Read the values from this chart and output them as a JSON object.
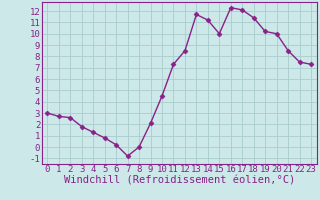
{
  "x": [
    0,
    1,
    2,
    3,
    4,
    5,
    6,
    7,
    8,
    9,
    10,
    11,
    12,
    13,
    14,
    15,
    16,
    17,
    18,
    19,
    20,
    21,
    22,
    23
  ],
  "y": [
    3.0,
    2.7,
    2.6,
    1.8,
    1.3,
    0.8,
    0.2,
    -0.8,
    0.0,
    2.1,
    4.5,
    7.3,
    8.5,
    11.7,
    11.2,
    10.0,
    12.3,
    12.1,
    11.4,
    10.2,
    10.0,
    8.5,
    7.5,
    7.3
  ],
  "line_color": "#882288",
  "marker": "D",
  "marker_size": 2.5,
  "bg_color": "#cce8e8",
  "grid_color": "#aacccc",
  "xlabel": "Windchill (Refroidissement éolien,°C)",
  "xlabel_color": "#882288",
  "xlim": [
    -0.5,
    23.5
  ],
  "ylim": [
    -1.5,
    12.8
  ],
  "xticks": [
    0,
    1,
    2,
    3,
    4,
    5,
    6,
    7,
    8,
    9,
    10,
    11,
    12,
    13,
    14,
    15,
    16,
    17,
    18,
    19,
    20,
    21,
    22,
    23
  ],
  "yticks": [
    -1,
    0,
    1,
    2,
    3,
    4,
    5,
    6,
    7,
    8,
    9,
    10,
    11,
    12
  ],
  "tick_fontsize": 6.5,
  "xlabel_fontsize": 7.5,
  "spine_color": "#882288",
  "line_width": 1.0
}
